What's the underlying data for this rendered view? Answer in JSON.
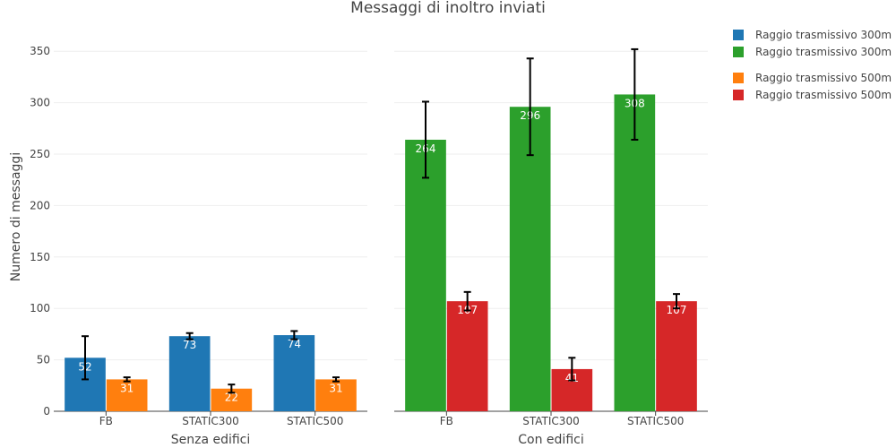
{
  "chart_data": {
    "type": "bar",
    "title": "Messaggi di inoltro inviati",
    "ylabel": "Numero di messaggi",
    "ylim": [
      0,
      365
    ],
    "yticks": [
      0,
      50,
      100,
      150,
      200,
      250,
      300,
      350
    ],
    "grid": true,
    "legend_placement": "top-right",
    "legend": [
      {
        "name": "Raggio trasmissivo 300m",
        "color": "#1f77b4"
      },
      {
        "name": "Raggio trasmissivo 300m",
        "color": "#2ca02c"
      },
      {
        "name": "Raggio trasmissivo 500m",
        "color": "#ff7f0e"
      },
      {
        "name": "Raggio trasmissivo 500m",
        "color": "#d62728"
      }
    ],
    "panels": [
      {
        "xlabel": "Senza edifici",
        "categories": [
          "FB",
          "STATIC300",
          "STATIC500"
        ],
        "series": [
          {
            "name": "Raggio trasmissivo 300m",
            "color": "#1f77b4",
            "values": [
              52,
              73,
              74
            ],
            "error": [
              21,
              3,
              4
            ]
          },
          {
            "name": "Raggio trasmissivo 500m",
            "color": "#ff7f0e",
            "values": [
              31,
              22,
              31
            ],
            "error": [
              2,
              4,
              2
            ]
          }
        ]
      },
      {
        "xlabel": "Con edifici",
        "categories": [
          "FB",
          "STATIC300",
          "STATIC500"
        ],
        "series": [
          {
            "name": "Raggio trasmissivo 300m",
            "color": "#2ca02c",
            "values": [
              264,
              296,
              308
            ],
            "error": [
              37,
              47,
              44
            ]
          },
          {
            "name": "Raggio trasmissivo 500m",
            "color": "#d62728",
            "values": [
              107,
              41,
              107
            ],
            "error": [
              9,
              11,
              7
            ]
          }
        ]
      }
    ]
  }
}
